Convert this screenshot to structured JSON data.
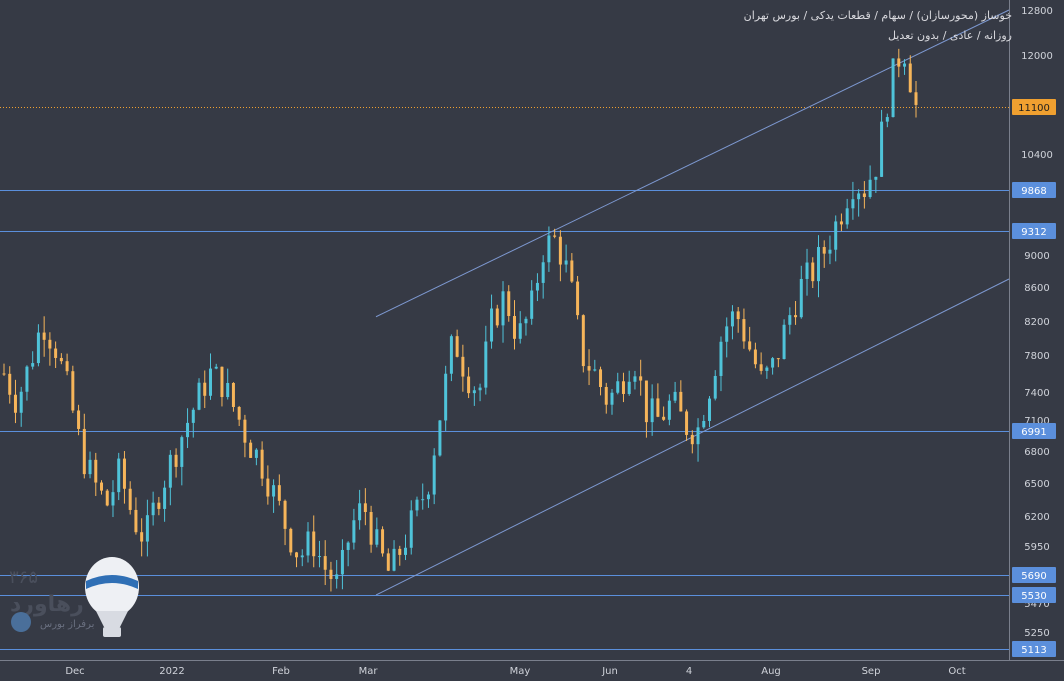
{
  "header": {
    "line1": "خوساز (محورسازان) / سهام / قطعات یدکی / بورس تهران",
    "line2": "روزانه / عادی / بدون تعدیل"
  },
  "watermark": {
    "digits": "۳۶۵",
    "brand": "رهاورد",
    "tagline": "برفراز بورس"
  },
  "colors": {
    "background": "#363a45",
    "up": "#4fc3d9",
    "down": "#f6b55a",
    "level_line": "#5b8fdc",
    "channel": "#7d98d0",
    "price_line": "#f0a030",
    "axis_text": "#d0d3da"
  },
  "chart_data": {
    "type": "candlestick",
    "x_ticks": [
      "Dec",
      "2022",
      "Feb",
      "Mar",
      "May",
      "Jun",
      "4",
      "Aug",
      "Sep",
      "Oct"
    ],
    "y_ticks": [
      12800,
      12000,
      10400,
      9000,
      8600,
      8200,
      7800,
      7400,
      7100,
      6800,
      6500,
      6200,
      5950,
      5470,
      5250
    ],
    "levels": [
      {
        "value": 9868,
        "label": "9868"
      },
      {
        "value": 9312,
        "label": "9312"
      },
      {
        "value": 6991,
        "label": "6991"
      },
      {
        "value": 5690,
        "label": "5690"
      },
      {
        "value": 5530,
        "label": "5530"
      },
      {
        "value": 5113,
        "label": "5113"
      }
    ],
    "last_price": {
      "value": 11100,
      "label": "11100"
    },
    "channel": {
      "upper": [
        [
          "Mar",
          8250
        ],
        [
          "Oct",
          12800
        ]
      ],
      "lower": [
        [
          "Mar",
          5530
        ],
        [
          "Oct",
          8700
        ]
      ]
    },
    "price_path": [
      7600,
      7300,
      7700,
      8200,
      7900,
      7400,
      6800,
      6500,
      6300,
      6600,
      6200,
      6000,
      6400,
      6700,
      7000,
      7300,
      7600,
      7500,
      7200,
      6900,
      6700,
      6400,
      6100,
      5850,
      6000,
      5750,
      5600,
      6100,
      6300,
      5950,
      5700,
      5950,
      6200,
      6500,
      7200,
      8000,
      7600,
      7400,
      8200,
      8500,
      8000,
      8300,
      9100,
      9200,
      8700,
      7800,
      7600,
      7300,
      7500,
      7800,
      7200,
      7100,
      7300,
      7050,
      7000,
      7500,
      8100,
      8300,
      7900,
      7500,
      7700,
      8200,
      8600,
      8800,
      9100,
      9500,
      10000,
      9900,
      10300,
      11500,
      12200,
      11100
    ]
  }
}
